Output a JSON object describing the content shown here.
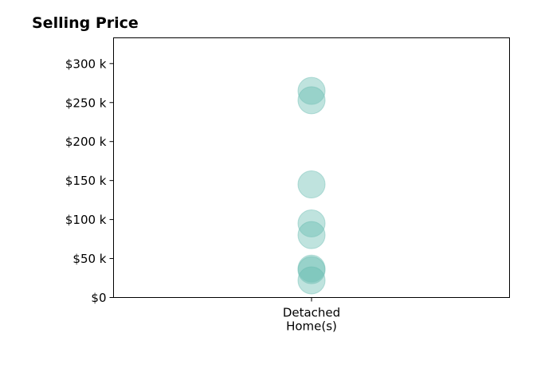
{
  "chart_data": {
    "type": "scatter",
    "title": "Selling Price",
    "xlabel": "",
    "ylabel": "",
    "categories": [
      "Detached\nHome(s)"
    ],
    "category_lines": [
      [
        "Detached",
        "Home(s)"
      ]
    ],
    "ylim": [
      0,
      333000
    ],
    "y_ticks": [
      0,
      50000,
      100000,
      150000,
      200000,
      250000,
      300000
    ],
    "y_tick_labels": [
      "$0",
      "$50 k",
      "$100 k",
      "$150 k",
      "$200 k",
      "$250 k",
      "$300 k"
    ],
    "grid": false,
    "legend": false,
    "series": [
      {
        "category": "Detached\nHome(s)",
        "values": [
          22000,
          35000,
          37000,
          80000,
          95000,
          145000,
          253000,
          265000
        ]
      }
    ],
    "marker_color": "#5fb8ac",
    "marker_edge_color": "#7ec4bb",
    "marker_opacity": 0.4
  }
}
